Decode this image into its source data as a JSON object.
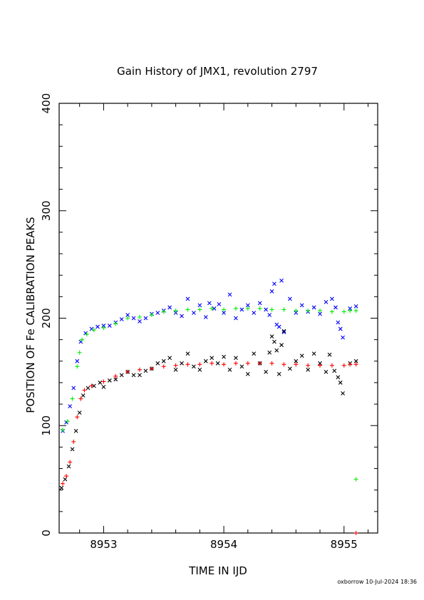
{
  "chart_data": {
    "type": "scatter",
    "title": "Gain History of JMX1, revolution 2797",
    "xlabel": "TIME IN IJD",
    "ylabel": "POSITION OF Fe CALIBRATION PEAKS",
    "footer": "oxborrow 10-Jul-2024 18:36",
    "xlim": [
      8952.63,
      8955.28
    ],
    "ylim": [
      0,
      400
    ],
    "x_ticks": [
      8953,
      8954,
      8955
    ],
    "x_tick_labels": [
      "8953",
      "8954",
      "8955"
    ],
    "y_ticks": [
      0,
      100,
      200,
      300,
      400
    ],
    "y_tick_labels": [
      "0",
      "100",
      "200",
      "300",
      "400"
    ],
    "grid": false,
    "series": [
      {
        "marker": "x",
        "color": "#0000ff",
        "points": [
          [
            8952.66,
            95
          ],
          [
            8952.69,
            103
          ],
          [
            8952.72,
            118
          ],
          [
            8952.75,
            135
          ],
          [
            8952.78,
            160
          ],
          [
            8952.81,
            178
          ],
          [
            8952.85,
            186
          ],
          [
            8952.9,
            190
          ],
          [
            8952.95,
            192
          ],
          [
            8953.0,
            193
          ],
          [
            8953.05,
            193
          ],
          [
            8953.1,
            196
          ],
          [
            8953.15,
            199
          ],
          [
            8953.2,
            203
          ],
          [
            8953.25,
            200
          ],
          [
            8953.3,
            197
          ],
          [
            8953.35,
            200
          ],
          [
            8953.4,
            204
          ],
          [
            8953.45,
            205
          ],
          [
            8953.5,
            207
          ],
          [
            8953.55,
            210
          ],
          [
            8953.6,
            205
          ],
          [
            8953.65,
            202
          ],
          [
            8953.7,
            218
          ],
          [
            8953.75,
            205
          ],
          [
            8953.8,
            212
          ],
          [
            8953.85,
            201
          ],
          [
            8953.88,
            214
          ],
          [
            8953.92,
            209
          ],
          [
            8953.96,
            213
          ],
          [
            8954.0,
            205
          ],
          [
            8954.05,
            222
          ],
          [
            8954.1,
            200
          ],
          [
            8954.15,
            208
          ],
          [
            8954.2,
            212
          ],
          [
            8954.25,
            205
          ],
          [
            8954.3,
            214
          ],
          [
            8954.35,
            208
          ],
          [
            8954.38,
            203
          ],
          [
            8954.4,
            225
          ],
          [
            8954.42,
            232
          ],
          [
            8954.44,
            194
          ],
          [
            8954.46,
            192
          ],
          [
            8954.48,
            235
          ],
          [
            8954.5,
            187
          ],
          [
            8954.55,
            218
          ],
          [
            8954.6,
            205
          ],
          [
            8954.65,
            212
          ],
          [
            8954.7,
            206
          ],
          [
            8954.75,
            210
          ],
          [
            8954.8,
            204
          ],
          [
            8954.85,
            215
          ],
          [
            8954.9,
            218
          ],
          [
            8954.93,
            210
          ],
          [
            8954.95,
            196
          ],
          [
            8954.97,
            190
          ],
          [
            8954.99,
            182
          ],
          [
            8955.05,
            209
          ],
          [
            8955.1,
            211
          ]
        ]
      },
      {
        "marker": "plus",
        "color": "#00ee00",
        "points": [
          [
            8952.66,
            96
          ],
          [
            8952.7,
            104
          ],
          [
            8952.74,
            125
          ],
          [
            8952.78,
            155
          ],
          [
            8952.8,
            168
          ],
          [
            8952.82,
            180
          ],
          [
            8952.86,
            185
          ],
          [
            8952.92,
            189
          ],
          [
            8953.0,
            191
          ],
          [
            8953.1,
            195
          ],
          [
            8953.2,
            200
          ],
          [
            8953.3,
            201
          ],
          [
            8953.4,
            203
          ],
          [
            8953.5,
            206
          ],
          [
            8953.6,
            207
          ],
          [
            8953.7,
            208
          ],
          [
            8953.8,
            208
          ],
          [
            8953.9,
            209
          ],
          [
            8954.0,
            208
          ],
          [
            8954.1,
            209
          ],
          [
            8954.2,
            209
          ],
          [
            8954.3,
            209
          ],
          [
            8954.4,
            208
          ],
          [
            8954.5,
            208
          ],
          [
            8954.6,
            207
          ],
          [
            8954.7,
            207
          ],
          [
            8954.8,
            207
          ],
          [
            8954.9,
            206
          ],
          [
            8955.0,
            206
          ],
          [
            8955.05,
            207
          ],
          [
            8955.1,
            207
          ],
          [
            8955.1,
            50
          ]
        ]
      },
      {
        "marker": "x",
        "color": "#000000",
        "points": [
          [
            8952.65,
            42
          ],
          [
            8952.68,
            50
          ],
          [
            8952.71,
            62
          ],
          [
            8952.74,
            78
          ],
          [
            8952.77,
            95
          ],
          [
            8952.8,
            112
          ],
          [
            8952.83,
            128
          ],
          [
            8952.87,
            135
          ],
          [
            8952.92,
            137
          ],
          [
            8952.97,
            140
          ],
          [
            8953.0,
            136
          ],
          [
            8953.05,
            142
          ],
          [
            8953.1,
            143
          ],
          [
            8953.15,
            147
          ],
          [
            8953.2,
            150
          ],
          [
            8953.25,
            147
          ],
          [
            8953.3,
            147
          ],
          [
            8953.35,
            151
          ],
          [
            8953.4,
            153
          ],
          [
            8953.45,
            158
          ],
          [
            8953.5,
            160
          ],
          [
            8953.55,
            163
          ],
          [
            8953.6,
            152
          ],
          [
            8953.65,
            158
          ],
          [
            8953.7,
            167
          ],
          [
            8953.75,
            155
          ],
          [
            8953.8,
            152
          ],
          [
            8953.85,
            160
          ],
          [
            8953.9,
            163
          ],
          [
            8953.95,
            158
          ],
          [
            8954.0,
            164
          ],
          [
            8954.05,
            152
          ],
          [
            8954.1,
            163
          ],
          [
            8954.15,
            155
          ],
          [
            8954.2,
            148
          ],
          [
            8954.25,
            167
          ],
          [
            8954.3,
            158
          ],
          [
            8954.35,
            150
          ],
          [
            8954.38,
            168
          ],
          [
            8954.4,
            183
          ],
          [
            8954.42,
            178
          ],
          [
            8954.44,
            170
          ],
          [
            8954.46,
            148
          ],
          [
            8954.48,
            175
          ],
          [
            8954.5,
            188
          ],
          [
            8954.55,
            153
          ],
          [
            8954.6,
            160
          ],
          [
            8954.65,
            165
          ],
          [
            8954.7,
            152
          ],
          [
            8954.75,
            167
          ],
          [
            8954.8,
            158
          ],
          [
            8954.85,
            150
          ],
          [
            8954.88,
            166
          ],
          [
            8954.92,
            151
          ],
          [
            8954.95,
            145
          ],
          [
            8954.97,
            140
          ],
          [
            8954.99,
            130
          ],
          [
            8955.05,
            158
          ],
          [
            8955.1,
            160
          ]
        ]
      },
      {
        "marker": "plus",
        "color": "#ff0000",
        "points": [
          [
            8952.66,
            46
          ],
          [
            8952.69,
            53
          ],
          [
            8952.72,
            66
          ],
          [
            8952.75,
            85
          ],
          [
            8952.78,
            108
          ],
          [
            8952.81,
            125
          ],
          [
            8952.84,
            133
          ],
          [
            8952.9,
            137
          ],
          [
            8953.0,
            141
          ],
          [
            8953.1,
            146
          ],
          [
            8953.2,
            150
          ],
          [
            8953.3,
            152
          ],
          [
            8953.4,
            153
          ],
          [
            8953.5,
            155
          ],
          [
            8953.6,
            156
          ],
          [
            8953.7,
            157
          ],
          [
            8953.8,
            157
          ],
          [
            8953.9,
            158
          ],
          [
            8954.0,
            157
          ],
          [
            8954.1,
            158
          ],
          [
            8954.2,
            158
          ],
          [
            8954.3,
            158
          ],
          [
            8954.4,
            158
          ],
          [
            8954.5,
            157
          ],
          [
            8954.6,
            157
          ],
          [
            8954.7,
            156
          ],
          [
            8954.8,
            156
          ],
          [
            8954.9,
            156
          ],
          [
            8955.0,
            156
          ],
          [
            8955.05,
            157
          ],
          [
            8955.1,
            157
          ],
          [
            8955.1,
            0
          ]
        ]
      }
    ]
  }
}
